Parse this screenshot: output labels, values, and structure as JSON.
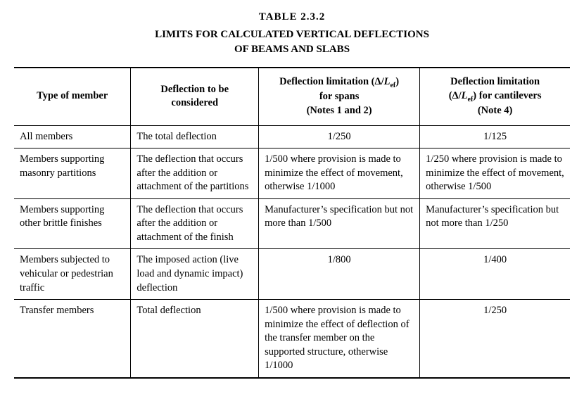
{
  "tableNumber": "TABLE   2.3.2",
  "titleLine1": "LIMITS FOR CALCULATED VERTICAL DEFLECTIONS",
  "titleLine2": "OF BEAMS AND SLABS",
  "headers": {
    "col1": "Type of member",
    "col2": "Deflection to be considered",
    "col3_pre": "Deflection limitation (Δ/",
    "col3_L": "L",
    "col3_ef": "ef",
    "col3_post": ")",
    "col3_line2": "for spans",
    "col3_line3": "(Notes 1 and 2)",
    "col4_pre": "Deflection limitation",
    "col4_line2_pre": "(Δ/",
    "col4_L": "L",
    "col4_ef": "ef",
    "col4_line2_post": ") for cantilevers",
    "col4_line3": "(Note 4)"
  },
  "rows": [
    {
      "member": "All members",
      "consider": "The total deflection",
      "spans": "1/250",
      "spansCenter": true,
      "cant": "1/125",
      "cantCenter": true
    },
    {
      "member": "Members supporting masonry partitions",
      "consider": "The deflection that occurs after the addition or attachment of the partitions",
      "spans": "1/500 where provision is made to minimize the effect of movement, otherwise 1/1000",
      "spansCenter": false,
      "cant": "1/250 where provision is made to minimize the effect of movement, otherwise 1/500",
      "cantCenter": false
    },
    {
      "member": "Members supporting other brittle finishes",
      "consider": "The deflection that occurs after the addition or attachment of the finish",
      "spans": "Manufacturer’s specification but not more than 1/500",
      "spansCenter": false,
      "cant": "Manufacturer’s specification but not more than 1/250",
      "cantCenter": false
    },
    {
      "member": "Members subjected to vehicular or pedestrian traffic",
      "consider": "The imposed action (live load and dynamic impact) deflection",
      "spans": "1/800",
      "spansCenter": true,
      "cant": "1/400",
      "cantCenter": true
    },
    {
      "member": "Transfer members",
      "consider": "Total deflection",
      "spans": "1/500 where provision is made to minimize the effect of deflection of the transfer member on the supported structure, otherwise 1/1000",
      "spansCenter": false,
      "cant": "1/250",
      "cantCenter": true
    }
  ]
}
